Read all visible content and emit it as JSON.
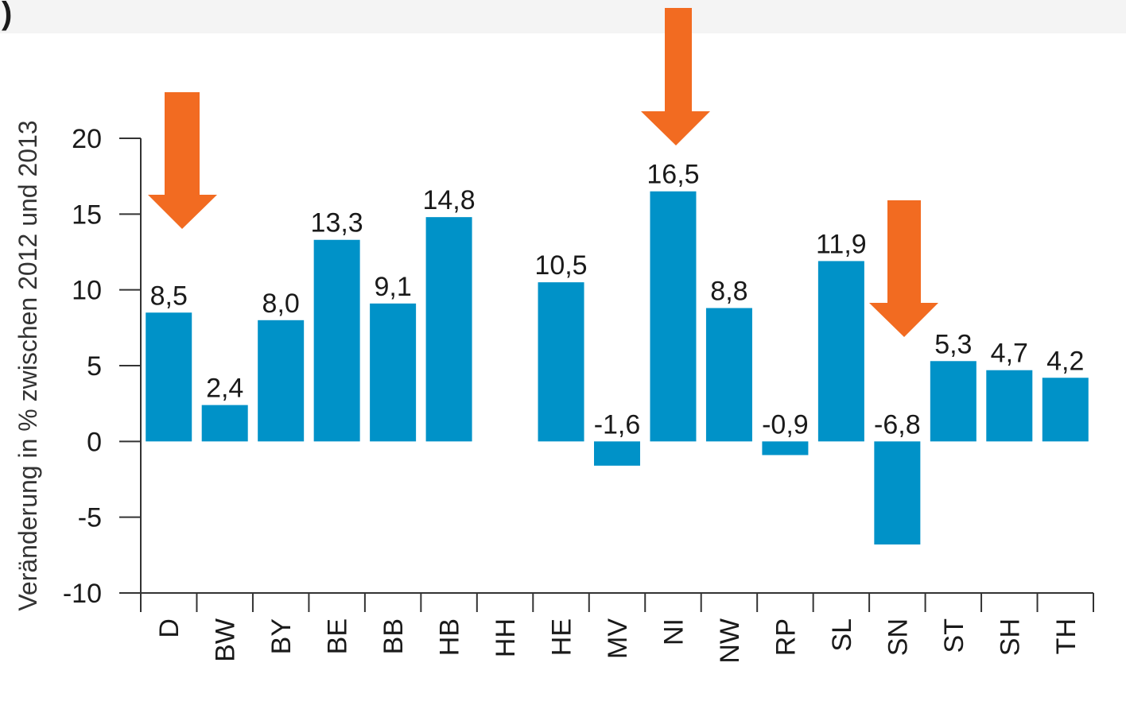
{
  "header_fragment": ")",
  "chart_data": {
    "type": "bar",
    "y_label": "Veränderung in % zwischen 2012 und 2013",
    "categories": [
      "D",
      "BW",
      "BY",
      "BE",
      "BB",
      "HB",
      "HH",
      "HE",
      "MV",
      "NI",
      "NW",
      "RP",
      "SL",
      "SN",
      "ST",
      "SH",
      "TH"
    ],
    "values": [
      8.5,
      2.4,
      8.0,
      13.3,
      9.1,
      14.8,
      null,
      10.5,
      -1.6,
      16.5,
      8.8,
      -0.9,
      11.9,
      -6.8,
      5.3,
      4.7,
      4.2
    ],
    "value_labels": [
      "8,5",
      "2,4",
      "8,0",
      "13,3",
      "9,1",
      "14,8",
      null,
      "10,5",
      "-1,6",
      "16,5",
      "8,8",
      "-0,9",
      "11,9",
      "-6,8",
      "5,3",
      "4,7",
      "4,2"
    ],
    "color": "#0092c8",
    "ylim": [
      -10,
      20
    ],
    "yticks": [
      -10,
      -5,
      0,
      5,
      10,
      15,
      20
    ],
    "grid": false
  }
}
